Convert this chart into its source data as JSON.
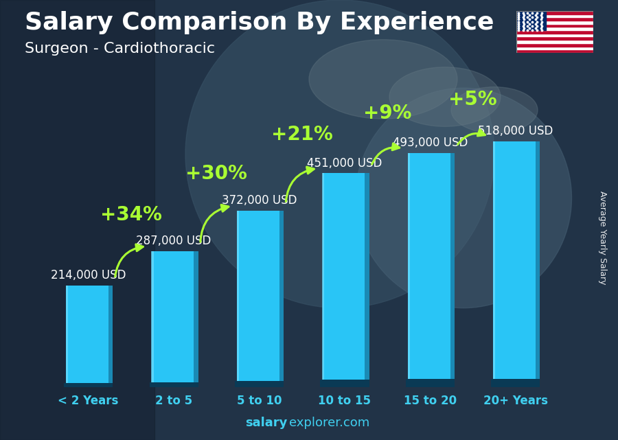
{
  "title": "Salary Comparison By Experience",
  "subtitle": "Surgeon - Cardiothoracic",
  "categories": [
    "< 2 Years",
    "2 to 5",
    "5 to 10",
    "10 to 15",
    "15 to 20",
    "20+ Years"
  ],
  "values": [
    214000,
    287000,
    372000,
    451000,
    493000,
    518000
  ],
  "salary_labels": [
    "214,000 USD",
    "287,000 USD",
    "372,000 USD",
    "451,000 USD",
    "493,000 USD",
    "518,000 USD"
  ],
  "pct_changes": [
    "+34%",
    "+30%",
    "+21%",
    "+9%",
    "+5%"
  ],
  "bar_color_face": "#29c5f6",
  "bar_color_shade": "#1a8ab5",
  "bar_color_highlight": "#6ee0ff",
  "background_color": "#1c2b3a",
  "title_color": "#ffffff",
  "subtitle_color": "#ffffff",
  "label_color": "#ffffff",
  "xtick_color": "#40d0f0",
  "pct_color": "#aaff33",
  "footer_bold": "salary",
  "footer_normal": "explorer.com",
  "footer_color": "#40d0f0",
  "ylabel": "Average Yearly Salary",
  "ylim": [
    0,
    630000
  ],
  "bar_width": 0.52,
  "title_fontsize": 26,
  "subtitle_fontsize": 16,
  "tick_fontsize": 12,
  "label_fontsize": 11,
  "pct_fontsize": 20,
  "salary_fontsize": 12
}
